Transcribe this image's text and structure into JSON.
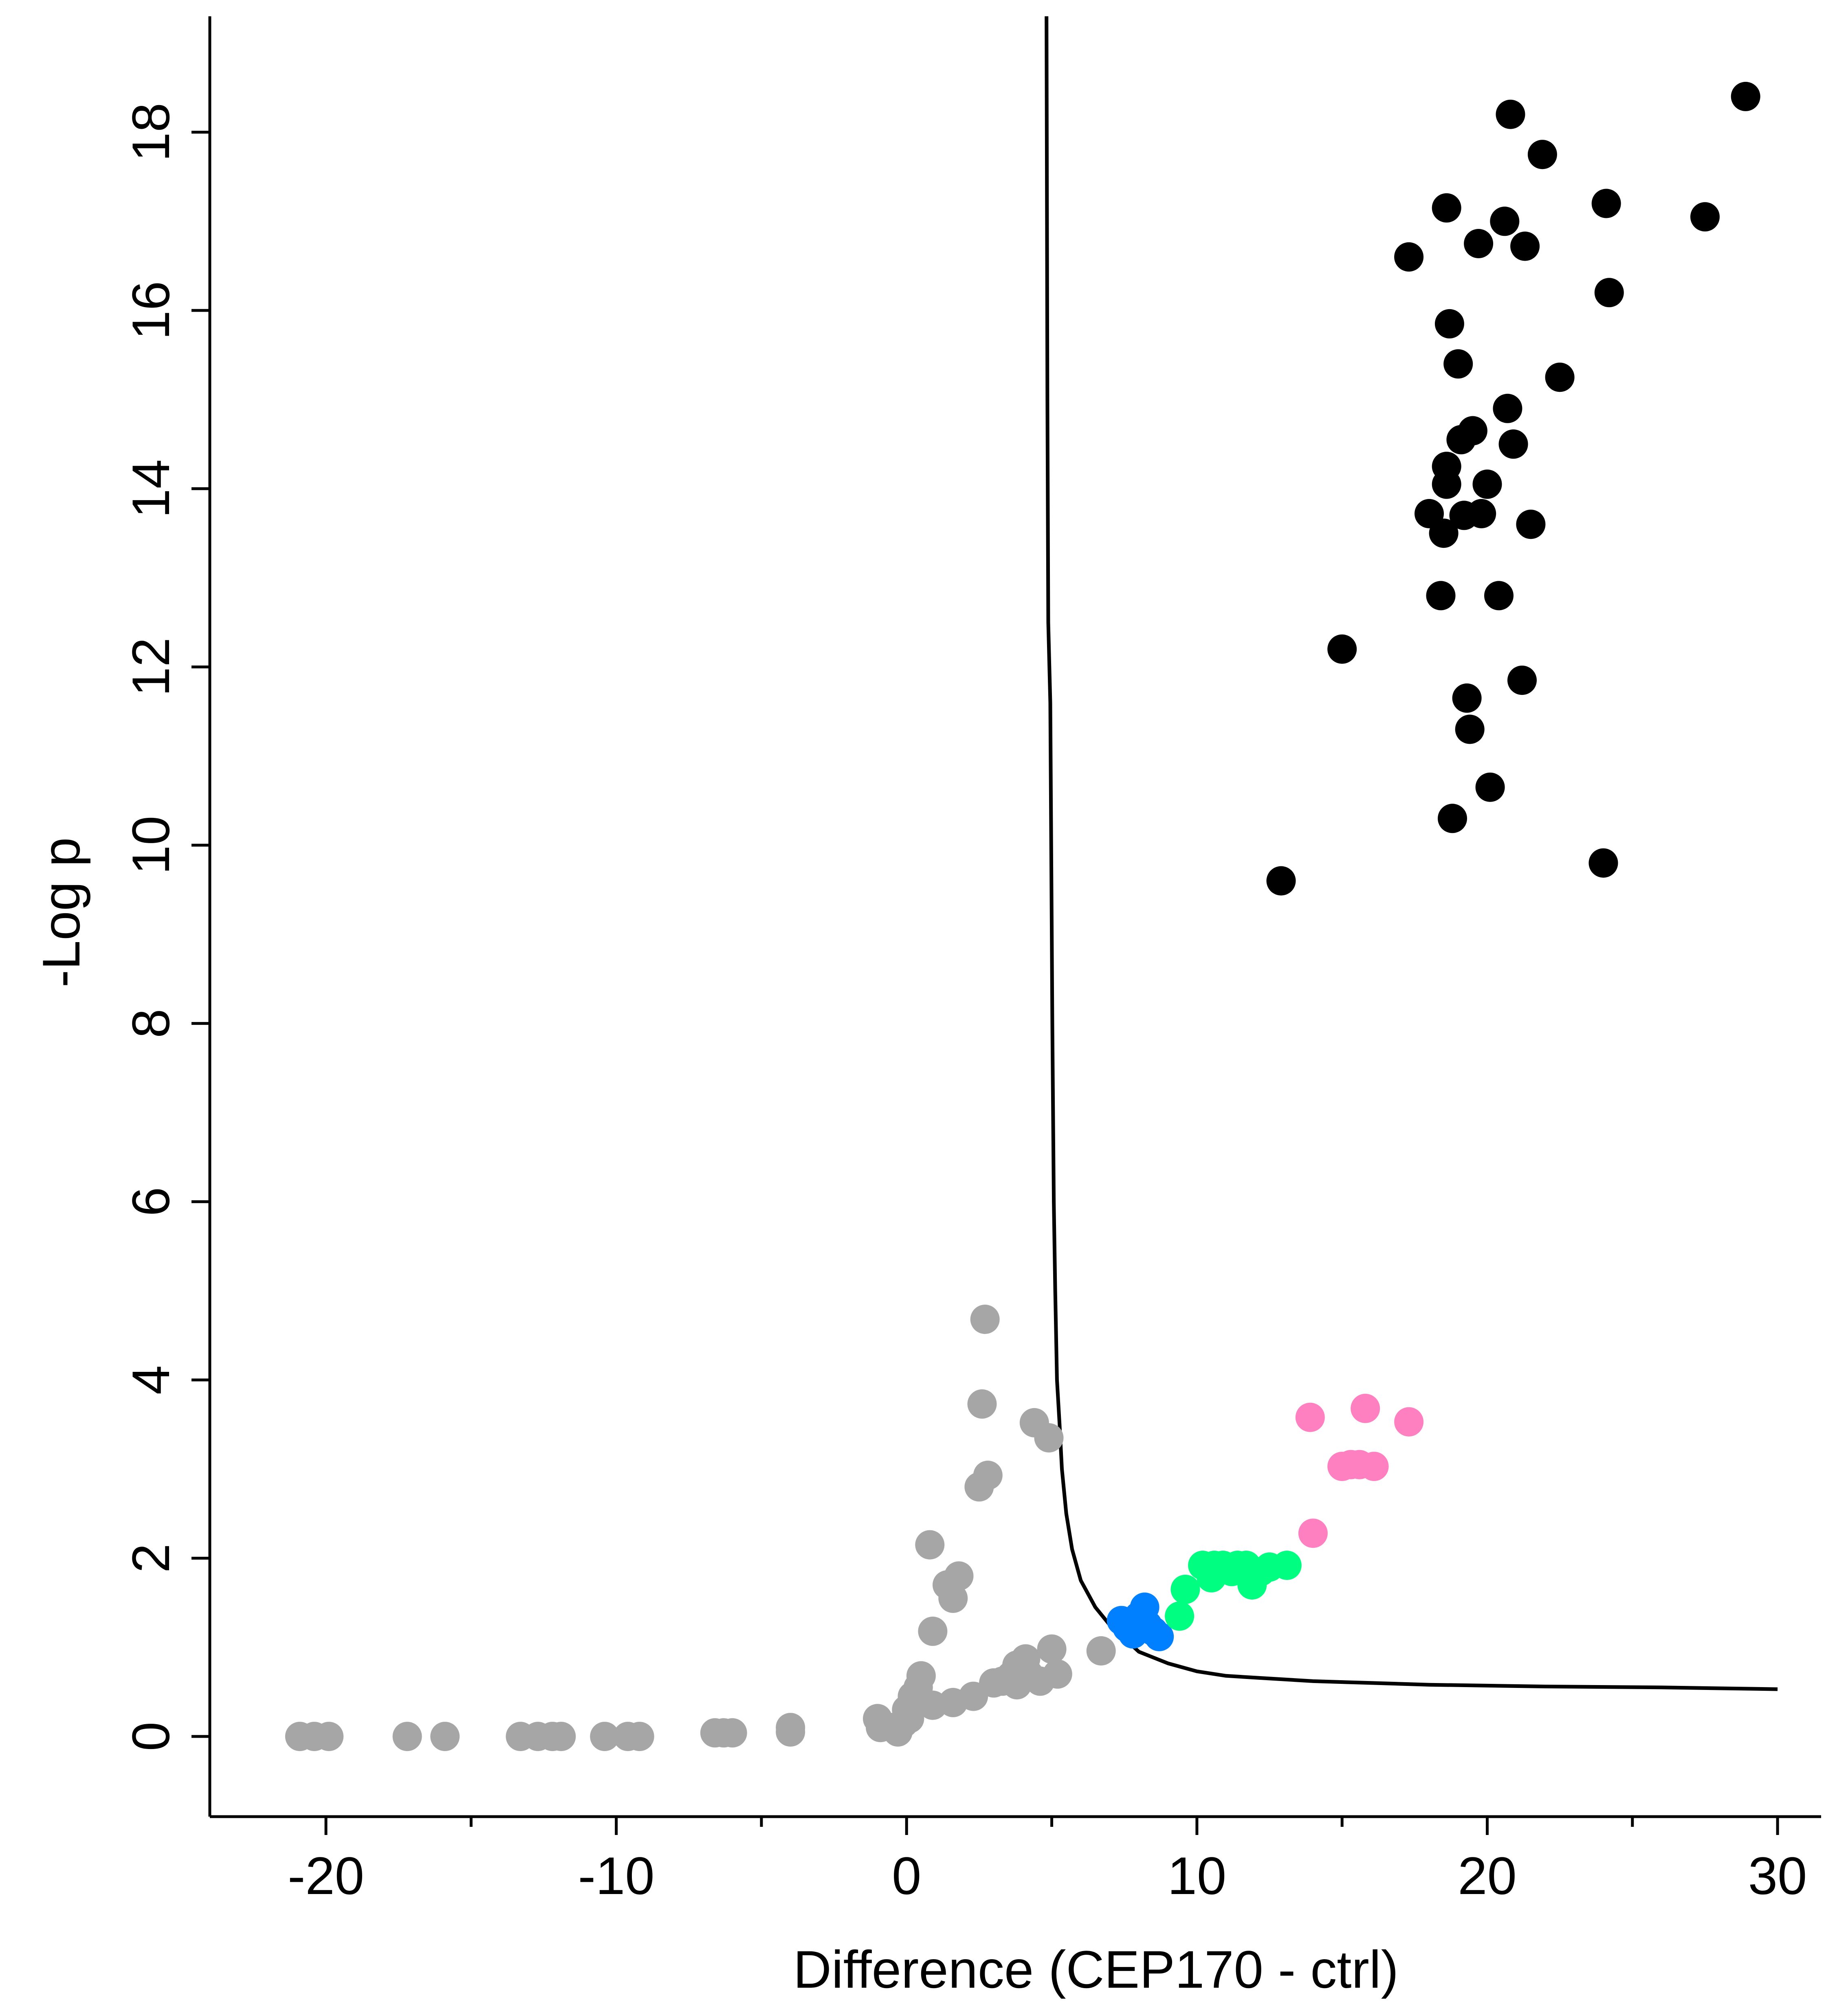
{
  "chart_data": {
    "type": "scatter",
    "title": "",
    "xlabel": "Difference (CEP170 - ctrl)",
    "ylabel": "-Log p",
    "xlim": [
      -24,
      31.5
    ],
    "ylim": [
      -0.9,
      19.3
    ],
    "xticks": [
      -20,
      -10,
      0,
      10,
      20,
      30
    ],
    "xtick_labels": [
      "-20",
      "-10",
      "0",
      "10",
      "20",
      "30"
    ],
    "xminor": [
      -15,
      -5,
      5,
      15,
      25
    ],
    "yticks": [
      0,
      2,
      4,
      6,
      8,
      10,
      12,
      14,
      16,
      18
    ],
    "ytick_labels": [
      "0",
      "2",
      "4",
      "6",
      "8",
      "10",
      "12",
      "14",
      "16",
      "18"
    ],
    "grid": false,
    "legend": "none",
    "series": [
      {
        "color": "#a6a6a6",
        "points": [
          [
            -20.9,
            0
          ],
          [
            -20.4,
            0
          ],
          [
            -19.9,
            0
          ],
          [
            -17.2,
            0
          ],
          [
            -15.9,
            0
          ],
          [
            -13.3,
            0
          ],
          [
            -12.7,
            0
          ],
          [
            -12.2,
            0
          ],
          [
            -11.9,
            0
          ],
          [
            -10.4,
            0
          ],
          [
            -9.6,
            0
          ],
          [
            -9.2,
            0
          ],
          [
            -6.6,
            0.04
          ],
          [
            -6.3,
            0.04
          ],
          [
            -6.0,
            0.04
          ],
          [
            -4.0,
            0.1
          ],
          [
            -4.0,
            0.05
          ],
          [
            -1.0,
            0.2
          ],
          [
            -0.9,
            0.1
          ],
          [
            -0.5,
            0.1
          ],
          [
            -0.3,
            0.05
          ],
          [
            -0.1,
            0.15
          ],
          [
            0.0,
            0.3
          ],
          [
            0.1,
            0.2
          ],
          [
            0.2,
            0.45
          ],
          [
            0.4,
            0.55
          ],
          [
            0.5,
            0.68
          ],
          [
            0.8,
            2.15
          ],
          [
            0.9,
            0.35
          ],
          [
            0.9,
            1.18
          ],
          [
            1.4,
            1.7
          ],
          [
            1.6,
            1.55
          ],
          [
            1.6,
            0.38
          ],
          [
            1.8,
            1.8
          ],
          [
            2.3,
            0.45
          ],
          [
            2.5,
            2.8
          ],
          [
            2.6,
            3.73
          ],
          [
            2.7,
            4.68
          ],
          [
            2.8,
            2.93
          ],
          [
            3.0,
            0.6
          ],
          [
            3.3,
            0.62
          ],
          [
            3.6,
            0.68
          ],
          [
            3.8,
            0.8
          ],
          [
            3.8,
            0.58
          ],
          [
            4.1,
            0.87
          ],
          [
            4.2,
            0.7
          ],
          [
            4.4,
            3.52
          ],
          [
            4.6,
            0.62
          ],
          [
            4.9,
            3.35
          ],
          [
            5.0,
            0.98
          ],
          [
            5.2,
            0.7
          ],
          [
            6.7,
            0.96
          ]
        ]
      },
      {
        "color": "#0080ff",
        "points": [
          [
            7.4,
            1.3
          ],
          [
            7.6,
            1.22
          ],
          [
            7.8,
            1.15
          ],
          [
            8.0,
            1.35
          ],
          [
            8.2,
            1.45
          ],
          [
            8.3,
            1.25
          ],
          [
            8.5,
            1.18
          ],
          [
            8.7,
            1.12
          ]
        ]
      },
      {
        "color": "#00ff80",
        "points": [
          [
            9.4,
            1.35
          ],
          [
            9.6,
            1.65
          ],
          [
            10.2,
            1.92
          ],
          [
            10.5,
            1.78
          ],
          [
            10.6,
            1.92
          ],
          [
            10.9,
            1.92
          ],
          [
            11.2,
            1.85
          ],
          [
            11.4,
            1.92
          ],
          [
            11.7,
            1.92
          ],
          [
            11.9,
            1.7
          ],
          [
            12.2,
            1.85
          ],
          [
            12.5,
            1.9
          ],
          [
            13.1,
            1.92
          ]
        ]
      },
      {
        "color": "#ff80c0",
        "points": [
          [
            13.9,
            3.58
          ],
          [
            14.0,
            2.28
          ],
          [
            15.0,
            3.03
          ],
          [
            15.3,
            3.05
          ],
          [
            15.6,
            3.05
          ],
          [
            15.8,
            3.68
          ],
          [
            16.1,
            3.03
          ],
          [
            17.3,
            3.53
          ]
        ]
      },
      {
        "color": "#000000",
        "points": [
          [
            12.9,
            9.6
          ],
          [
            15.0,
            12.2
          ],
          [
            17.3,
            16.6
          ],
          [
            18.0,
            13.72
          ],
          [
            18.4,
            12.8
          ],
          [
            18.5,
            13.5
          ],
          [
            18.6,
            17.15
          ],
          [
            18.6,
            14.25
          ],
          [
            18.6,
            14.05
          ],
          [
            18.7,
            15.85
          ],
          [
            18.8,
            10.3
          ],
          [
            19.0,
            15.4
          ],
          [
            19.1,
            14.55
          ],
          [
            19.2,
            13.7
          ],
          [
            19.3,
            11.65
          ],
          [
            19.4,
            11.3
          ],
          [
            19.5,
            14.65
          ],
          [
            19.7,
            16.75
          ],
          [
            19.8,
            13.72
          ],
          [
            20.0,
            14.05
          ],
          [
            20.1,
            10.65
          ],
          [
            20.4,
            12.8
          ],
          [
            20.6,
            17.0
          ],
          [
            20.8,
            18.2
          ],
          [
            20.7,
            14.9
          ],
          [
            20.9,
            14.5
          ],
          [
            21.2,
            11.85
          ],
          [
            21.3,
            16.72
          ],
          [
            21.5,
            13.6
          ],
          [
            21.9,
            17.75
          ],
          [
            22.5,
            15.25
          ],
          [
            24.0,
            9.8
          ],
          [
            24.1,
            17.2
          ],
          [
            24.2,
            16.2
          ],
          [
            27.5,
            17.05
          ],
          [
            28.9,
            18.4
          ]
        ]
      }
    ],
    "curve": {
      "color": "#000000",
      "points": [
        [
          4.82,
          19.3
        ],
        [
          4.85,
          15.0
        ],
        [
          4.88,
          12.5
        ],
        [
          4.95,
          11.6
        ],
        [
          5.02,
          8.0
        ],
        [
          5.07,
          6.0
        ],
        [
          5.12,
          5.0
        ],
        [
          5.18,
          4.0
        ],
        [
          5.27,
          3.5
        ],
        [
          5.35,
          3.0
        ],
        [
          5.5,
          2.5
        ],
        [
          5.7,
          2.1
        ],
        [
          6.0,
          1.75
        ],
        [
          6.5,
          1.45
        ],
        [
          7.0,
          1.25
        ],
        [
          7.5,
          1.1
        ],
        [
          8.0,
          0.95
        ],
        [
          9.0,
          0.82
        ],
        [
          10.0,
          0.73
        ],
        [
          11.0,
          0.68
        ],
        [
          12.0,
          0.66
        ],
        [
          14.0,
          0.62
        ],
        [
          16.0,
          0.6
        ],
        [
          18.0,
          0.58
        ],
        [
          22.0,
          0.56
        ],
        [
          26.0,
          0.55
        ],
        [
          30.0,
          0.53
        ]
      ]
    }
  }
}
